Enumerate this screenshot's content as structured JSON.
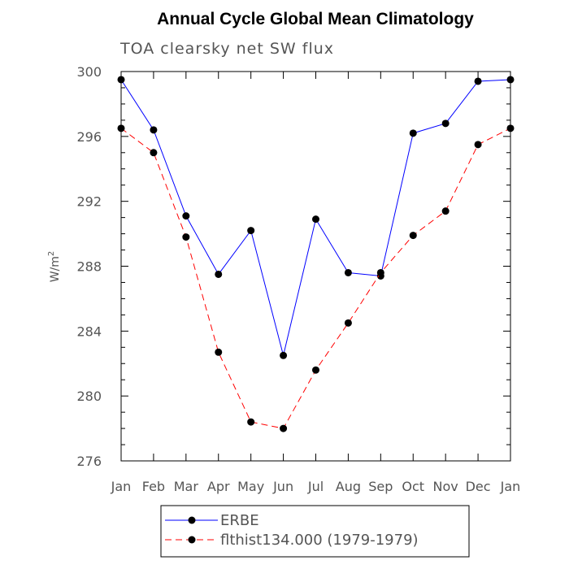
{
  "chart_data": {
    "type": "line",
    "title": "Annual Cycle Global Mean Climatology",
    "subtitle": "TOA clearsky net SW flux",
    "xlabel": "",
    "ylabel": "W/m",
    "ylabel_superscript": "2",
    "categories": [
      "Jan",
      "Feb",
      "Mar",
      "Apr",
      "May",
      "Jun",
      "Jul",
      "Aug",
      "Sep",
      "Oct",
      "Nov",
      "Dec",
      "Jan"
    ],
    "ylim": [
      276,
      300
    ],
    "yticks": [
      276,
      280,
      284,
      288,
      292,
      296,
      300
    ],
    "series": [
      {
        "name": "ERBE",
        "color": "#0000ff",
        "dash": "solid",
        "values": [
          299.5,
          296.4,
          291.1,
          287.5,
          290.2,
          282.5,
          290.9,
          287.6,
          287.4,
          296.2,
          296.8,
          299.4,
          299.5
        ]
      },
      {
        "name": "flthist134.000 (1979-1979)",
        "color": "#ff0000",
        "dash": "dashed",
        "values": [
          296.5,
          295.0,
          289.8,
          282.7,
          278.4,
          278.0,
          281.6,
          284.5,
          287.6,
          289.9,
          291.4,
          295.5,
          296.5
        ]
      }
    ],
    "legend_position": "bottom"
  }
}
